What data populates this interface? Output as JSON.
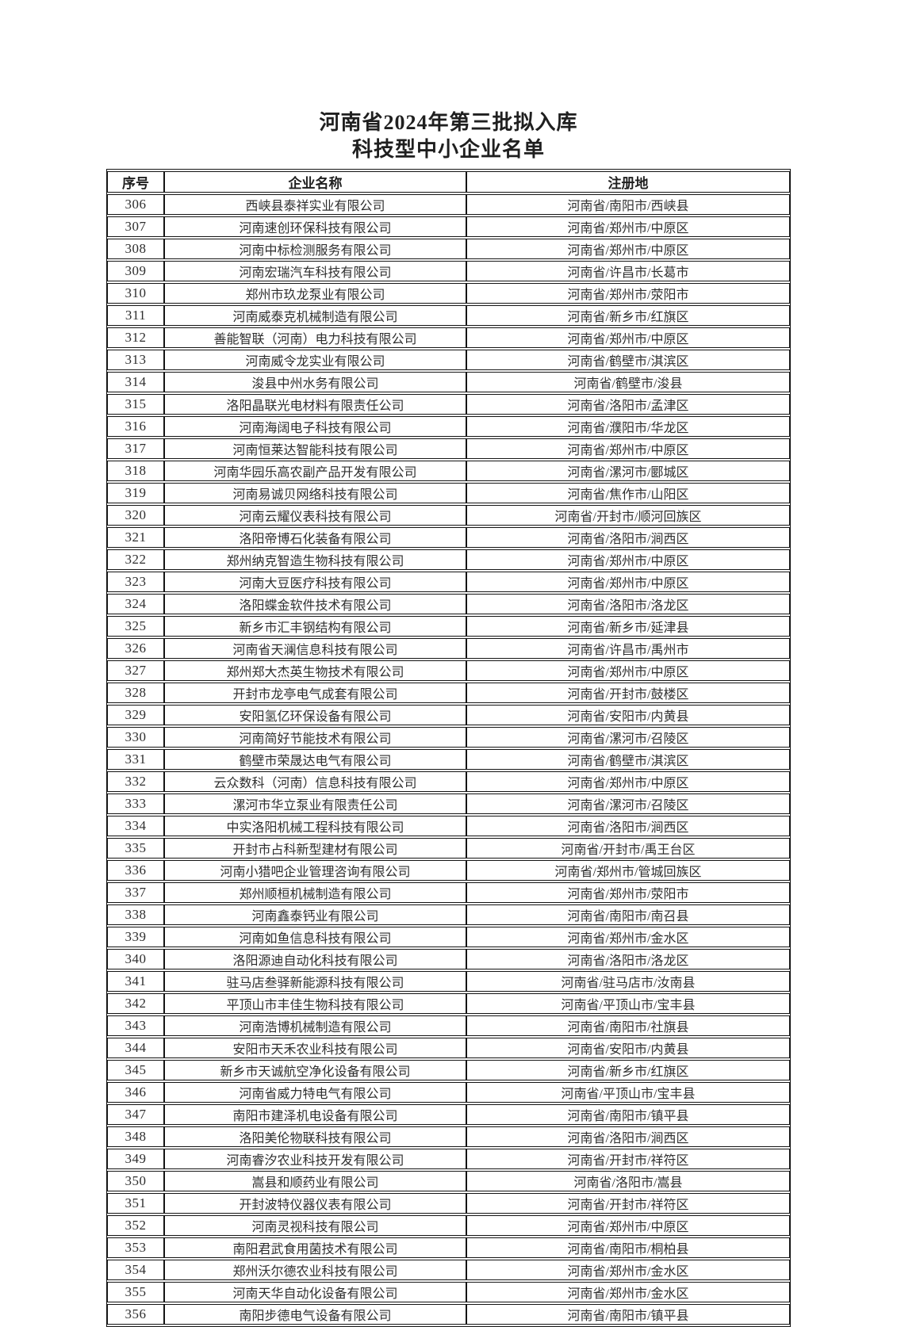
{
  "title": {
    "line1": "河南省2024年第三批拟入库",
    "line2": "科技型中小企业名单"
  },
  "table": {
    "headers": [
      "序号",
      "企业名称",
      "注册地"
    ],
    "rows": [
      [
        "306",
        "西峡县泰祥实业有限公司",
        "河南省/南阳市/西峡县"
      ],
      [
        "307",
        "河南速创环保科技有限公司",
        "河南省/郑州市/中原区"
      ],
      [
        "308",
        "河南中标检测服务有限公司",
        "河南省/郑州市/中原区"
      ],
      [
        "309",
        "河南宏瑞汽车科技有限公司",
        "河南省/许昌市/长葛市"
      ],
      [
        "310",
        "郑州市玖龙泵业有限公司",
        "河南省/郑州市/荥阳市"
      ],
      [
        "311",
        "河南威泰克机械制造有限公司",
        "河南省/新乡市/红旗区"
      ],
      [
        "312",
        "善能智联（河南）电力科技有限公司",
        "河南省/郑州市/中原区"
      ],
      [
        "313",
        "河南威令龙实业有限公司",
        "河南省/鹤壁市/淇滨区"
      ],
      [
        "314",
        "浚县中州水务有限公司",
        "河南省/鹤壁市/浚县"
      ],
      [
        "315",
        "洛阳晶联光电材料有限责任公司",
        "河南省/洛阳市/孟津区"
      ],
      [
        "316",
        "河南海阔电子科技有限公司",
        "河南省/濮阳市/华龙区"
      ],
      [
        "317",
        "河南恒莱达智能科技有限公司",
        "河南省/郑州市/中原区"
      ],
      [
        "318",
        "河南华园乐高农副产品开发有限公司",
        "河南省/漯河市/郾城区"
      ],
      [
        "319",
        "河南易诚贝网络科技有限公司",
        "河南省/焦作市/山阳区"
      ],
      [
        "320",
        "河南云耀仪表科技有限公司",
        "河南省/开封市/顺河回族区"
      ],
      [
        "321",
        "洛阳帝博石化装备有限公司",
        "河南省/洛阳市/涧西区"
      ],
      [
        "322",
        "郑州纳克智造生物科技有限公司",
        "河南省/郑州市/中原区"
      ],
      [
        "323",
        "河南大豆医疗科技有限公司",
        "河南省/郑州市/中原区"
      ],
      [
        "324",
        "洛阳蝶金软件技术有限公司",
        "河南省/洛阳市/洛龙区"
      ],
      [
        "325",
        "新乡市汇丰钢结构有限公司",
        "河南省/新乡市/延津县"
      ],
      [
        "326",
        "河南省天澜信息科技有限公司",
        "河南省/许昌市/禹州市"
      ],
      [
        "327",
        "郑州郑大杰英生物技术有限公司",
        "河南省/郑州市/中原区"
      ],
      [
        "328",
        "开封市龙亭电气成套有限公司",
        "河南省/开封市/鼓楼区"
      ],
      [
        "329",
        "安阳氢亿环保设备有限公司",
        "河南省/安阳市/内黄县"
      ],
      [
        "330",
        "河南简好节能技术有限公司",
        "河南省/漯河市/召陵区"
      ],
      [
        "331",
        "鹤壁市荣晟达电气有限公司",
        "河南省/鹤壁市/淇滨区"
      ],
      [
        "332",
        "云众数科（河南）信息科技有限公司",
        "河南省/郑州市/中原区"
      ],
      [
        "333",
        "漯河市华立泵业有限责任公司",
        "河南省/漯河市/召陵区"
      ],
      [
        "334",
        "中实洛阳机械工程科技有限公司",
        "河南省/洛阳市/涧西区"
      ],
      [
        "335",
        "开封市占科新型建材有限公司",
        "河南省/开封市/禹王台区"
      ],
      [
        "336",
        "河南小猎吧企业管理咨询有限公司",
        "河南省/郑州市/管城回族区"
      ],
      [
        "337",
        "郑州顺桓机械制造有限公司",
        "河南省/郑州市/荥阳市"
      ],
      [
        "338",
        "河南鑫泰钙业有限公司",
        "河南省/南阳市/南召县"
      ],
      [
        "339",
        "河南如鱼信息科技有限公司",
        "河南省/郑州市/金水区"
      ],
      [
        "340",
        "洛阳源迪自动化科技有限公司",
        "河南省/洛阳市/洛龙区"
      ],
      [
        "341",
        "驻马店叁驿新能源科技有限公司",
        "河南省/驻马店市/汝南县"
      ],
      [
        "342",
        "平顶山市丰佳生物科技有限公司",
        "河南省/平顶山市/宝丰县"
      ],
      [
        "343",
        "河南浩博机械制造有限公司",
        "河南省/南阳市/社旗县"
      ],
      [
        "344",
        "安阳市天禾农业科技有限公司",
        "河南省/安阳市/内黄县"
      ],
      [
        "345",
        "新乡市天诚航空净化设备有限公司",
        "河南省/新乡市/红旗区"
      ],
      [
        "346",
        "河南省威力特电气有限公司",
        "河南省/平顶山市/宝丰县"
      ],
      [
        "347",
        "南阳市建泽机电设备有限公司",
        "河南省/南阳市/镇平县"
      ],
      [
        "348",
        "洛阳美伦物联科技有限公司",
        "河南省/洛阳市/涧西区"
      ],
      [
        "349",
        "河南睿汐农业科技开发有限公司",
        "河南省/开封市/祥符区"
      ],
      [
        "350",
        "嵩县和顺药业有限公司",
        "河南省/洛阳市/嵩县"
      ],
      [
        "351",
        "开封波特仪器仪表有限公司",
        "河南省/开封市/祥符区"
      ],
      [
        "352",
        "河南灵视科技有限公司",
        "河南省/郑州市/中原区"
      ],
      [
        "353",
        "南阳君武食用菌技术有限公司",
        "河南省/南阳市/桐柏县"
      ],
      [
        "354",
        "郑州沃尔德农业科技有限公司",
        "河南省/郑州市/金水区"
      ],
      [
        "355",
        "河南天华自动化设备有限公司",
        "河南省/郑州市/金水区"
      ],
      [
        "356",
        "南阳步德电气设备有限公司",
        "河南省/南阳市/镇平县"
      ]
    ]
  }
}
